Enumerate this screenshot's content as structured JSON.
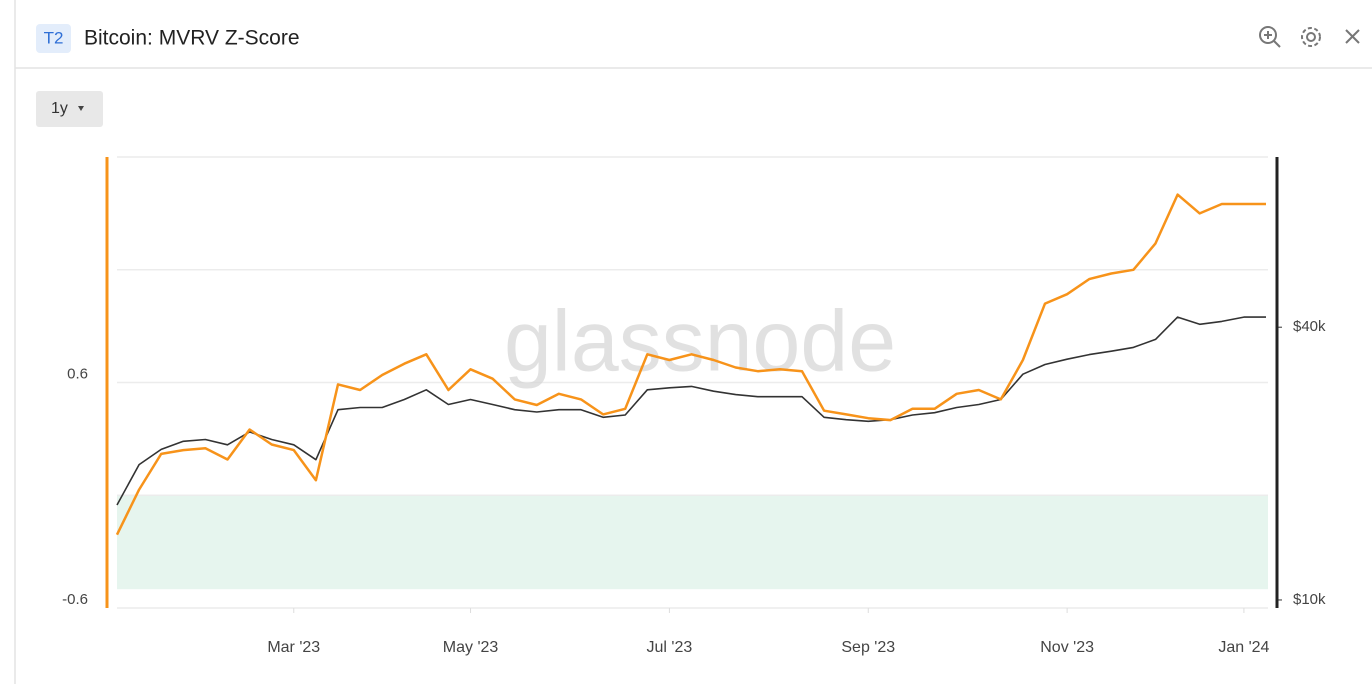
{
  "header": {
    "badge": "T2",
    "title": "Bitcoin: MVRV Z-Score"
  },
  "toolbar": {
    "range": "1y"
  },
  "chart_data": {
    "type": "line",
    "watermark": "glassnode",
    "categories": [
      null,
      null,
      null,
      null,
      null,
      null,
      null,
      null,
      "Mar '23",
      null,
      null,
      null,
      null,
      null,
      null,
      null,
      "May '23",
      null,
      null,
      null,
      null,
      null,
      null,
      null,
      null,
      "Jul '23",
      null,
      null,
      null,
      null,
      null,
      null,
      null,
      null,
      "Sep '23",
      null,
      null,
      null,
      null,
      null,
      null,
      null,
      null,
      "Nov '23",
      null,
      null,
      null,
      null,
      null,
      null,
      null,
      "Jan '24",
      null
    ],
    "series": [
      {
        "color": "#f7931a",
        "values": [
          -0.21,
          0.03,
          0.22,
          0.24,
          0.25,
          0.19,
          0.35,
          0.27,
          0.24,
          0.08,
          0.59,
          0.56,
          0.64,
          0.7,
          0.75,
          0.56,
          0.67,
          0.62,
          0.51,
          0.48,
          0.54,
          0.51,
          0.43,
          0.46,
          0.75,
          0.72,
          0.75,
          0.72,
          0.68,
          0.66,
          0.67,
          0.66,
          0.45,
          0.43,
          0.41,
          0.4,
          0.46,
          0.46,
          0.54,
          0.56,
          0.51,
          0.72,
          1.02,
          1.07,
          1.15,
          1.18,
          1.2,
          1.34,
          1.6,
          1.5,
          1.55,
          1.55,
          1.55
        ]
      },
      {
        "color": "#333333",
        "axis": "y2",
        "values": [
          16200,
          19900,
          21500,
          22400,
          22600,
          22000,
          23500,
          22600,
          22000,
          20400,
          26300,
          26600,
          26600,
          27700,
          29100,
          27000,
          27700,
          27000,
          26300,
          26000,
          26300,
          26300,
          25300,
          25600,
          29100,
          29400,
          29600,
          28900,
          28400,
          28100,
          28100,
          28100,
          25300,
          25000,
          24800,
          25000,
          25600,
          25900,
          26600,
          27000,
          27700,
          31500,
          33100,
          34000,
          34800,
          35400,
          36100,
          37600,
          42100,
          40600,
          41200,
          42100,
          42100
        ]
      }
    ],
    "ylim": [
      -0.6,
      1.8
    ],
    "yticks": [
      -0.6,
      0.6
    ],
    "gridlines": [
      0,
      1.2,
      1.8
    ],
    "y2lim": [
      9600,
      95000
    ],
    "y2ticks": [
      {
        "value": 10000,
        "label": "$10k"
      },
      {
        "value": 40000,
        "label": "$40k"
      }
    ],
    "y2_log": true,
    "zone": {
      "from": -0.5,
      "to": 0,
      "color": "#e6f5ee"
    },
    "grid": true
  }
}
